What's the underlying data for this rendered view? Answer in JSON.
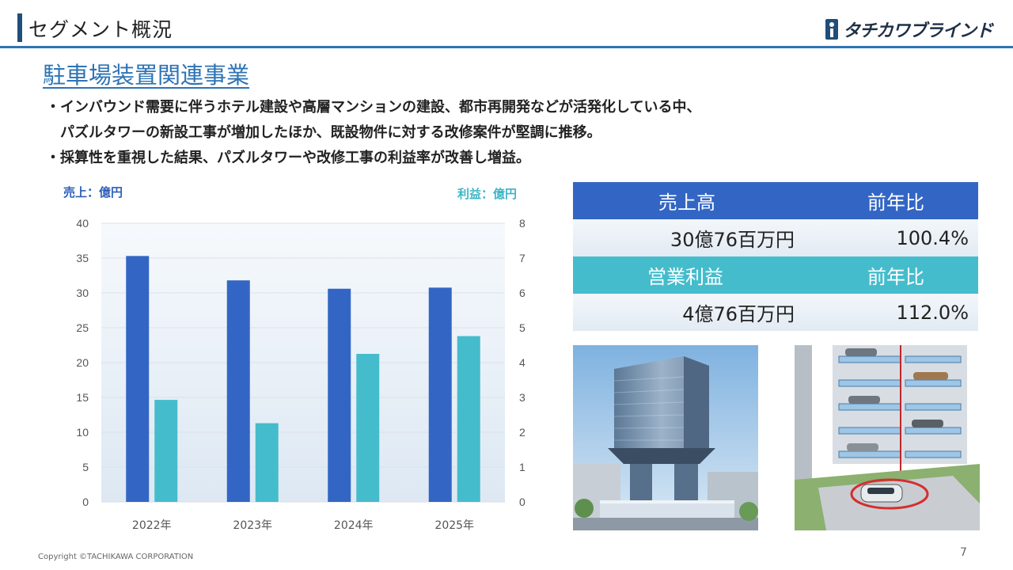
{
  "header": {
    "title": "セグメント概況",
    "logo_text": "タチカワブラインド"
  },
  "section_title": "駐車場装置関連事業",
  "bullets": [
    "・インバウンド需要に伴うホテル建設や高層マンションの建設、都市再開発などが活発化している中、",
    "　パズルタワーの新設工事が増加したほか、既設物件に対する改修案件が堅調に推移。",
    "・採算性を重視した結果、パズルタワーや改修工事の利益率が改善し増益。"
  ],
  "chart_data": {
    "type": "bar",
    "categories": [
      "2022年",
      "2023年",
      "2024年",
      "2025年"
    ],
    "series": [
      {
        "name": "売上",
        "axis": "left",
        "color": "#3366c4",
        "values": [
          35.3,
          31.8,
          30.6,
          30.76
        ]
      },
      {
        "name": "利益",
        "axis": "right",
        "color": "#45bccc",
        "values": [
          2.93,
          2.26,
          4.25,
          4.76
        ]
      }
    ],
    "y_left_label": "売上：億円",
    "y_right_label": "利益：億円",
    "y_left_range": [
      0,
      40
    ],
    "y_right_range": [
      0,
      8
    ],
    "y_left_ticks": [
      "0",
      "5",
      "10",
      "15",
      "20",
      "25",
      "30",
      "35",
      "40"
    ],
    "y_right_ticks": [
      "0",
      "1",
      "2",
      "3",
      "4",
      "5",
      "6",
      "7",
      "8"
    ],
    "grid": true,
    "plot_background": "gradient light blue"
  },
  "summary_table": {
    "sales_label": "売上高",
    "yoy_label_1": "前年比",
    "sales_value": "30億76百万円",
    "sales_yoy": "100.4%",
    "profit_label": "営業利益",
    "yoy_label_2": "前年比",
    "profit_value": "4億76百万円",
    "profit_yoy": "112.0%",
    "colors": {
      "sales_header": "#3366c4",
      "profit_header": "#45bccc"
    }
  },
  "images": {
    "left": "high-rise-building-rendering",
    "right": "puzzle-tower-parking-cutaway"
  },
  "footer": {
    "copyright": "Copyright ©TACHIKAWA CORPORATION",
    "page_number": "7"
  }
}
